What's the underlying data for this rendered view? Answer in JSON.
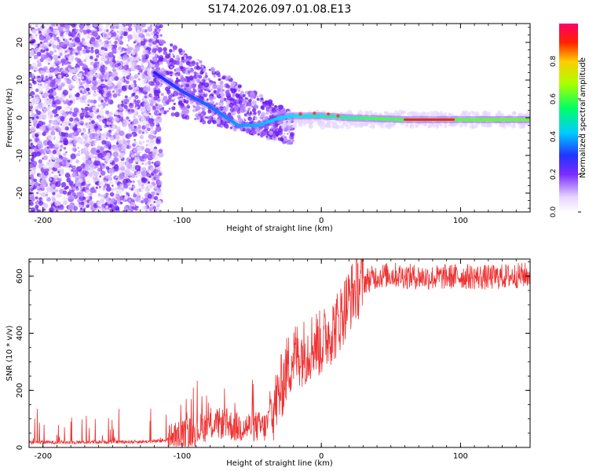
{
  "title": "S174.2026.097.01.08.E13",
  "chart_data": [
    {
      "type": "heatmap",
      "title": "S174.2026.097.01.08.E13",
      "xlabel": "Height of straight line (km)",
      "ylabel": "Frequency (Hz)",
      "xlim": [
        -210,
        150
      ],
      "ylim": [
        -25,
        25
      ],
      "xticks": [
        -200,
        -100,
        0,
        100
      ],
      "yticks": [
        -20,
        -10,
        0,
        10,
        20
      ],
      "colorbar": {
        "label": "Normalized spectral amplitude",
        "range": [
          0,
          1
        ],
        "ticks": [
          "0.0",
          "0.2",
          "0.4",
          "0.6",
          "0.8"
        ],
        "tick_values": [
          0.0,
          0.2,
          0.4,
          0.6,
          0.8
        ]
      },
      "ridge": {
        "description_points": [
          [
            -120,
            12
          ],
          [
            -100,
            7
          ],
          [
            -80,
            3
          ],
          [
            -60,
            -2
          ],
          [
            -45,
            -2
          ],
          [
            -30,
            0
          ],
          [
            -20,
            0.5
          ],
          [
            0,
            0.5
          ],
          [
            20,
            0
          ],
          [
            60,
            -0.5
          ],
          [
            100,
            -0.5
          ],
          [
            150,
            -0.5
          ]
        ],
        "peak_amplitude_region": [
          60,
          95
        ]
      }
    },
    {
      "type": "line",
      "xlabel": "Height of straight line (km)",
      "ylabel": "SNR (10 * v/v)",
      "xlim": [
        -210,
        150
      ],
      "ylim": [
        0,
        660
      ],
      "xticks": [
        -200,
        -100,
        0,
        100
      ],
      "yticks": [
        0,
        200,
        400,
        600
      ],
      "series": [
        {
          "name": "SNR",
          "color": "#ee3333",
          "x": [
            -210,
            -180,
            -150,
            -130,
            -115,
            -105,
            -100,
            -90,
            -80,
            -70,
            -60,
            -50,
            -40,
            -35,
            -30,
            -25,
            -20,
            -15,
            -10,
            -5,
            0,
            5,
            10,
            15,
            20,
            25,
            30,
            40,
            50,
            60,
            80,
            100,
            120,
            150
          ],
          "y": [
            18,
            18,
            20,
            20,
            22,
            35,
            45,
            60,
            80,
            85,
            70,
            75,
            70,
            130,
            190,
            270,
            320,
            330,
            340,
            370,
            360,
            400,
            420,
            470,
            520,
            560,
            580,
            600,
            605,
            600,
            595,
            600,
            595,
            605
          ]
        }
      ]
    }
  ]
}
